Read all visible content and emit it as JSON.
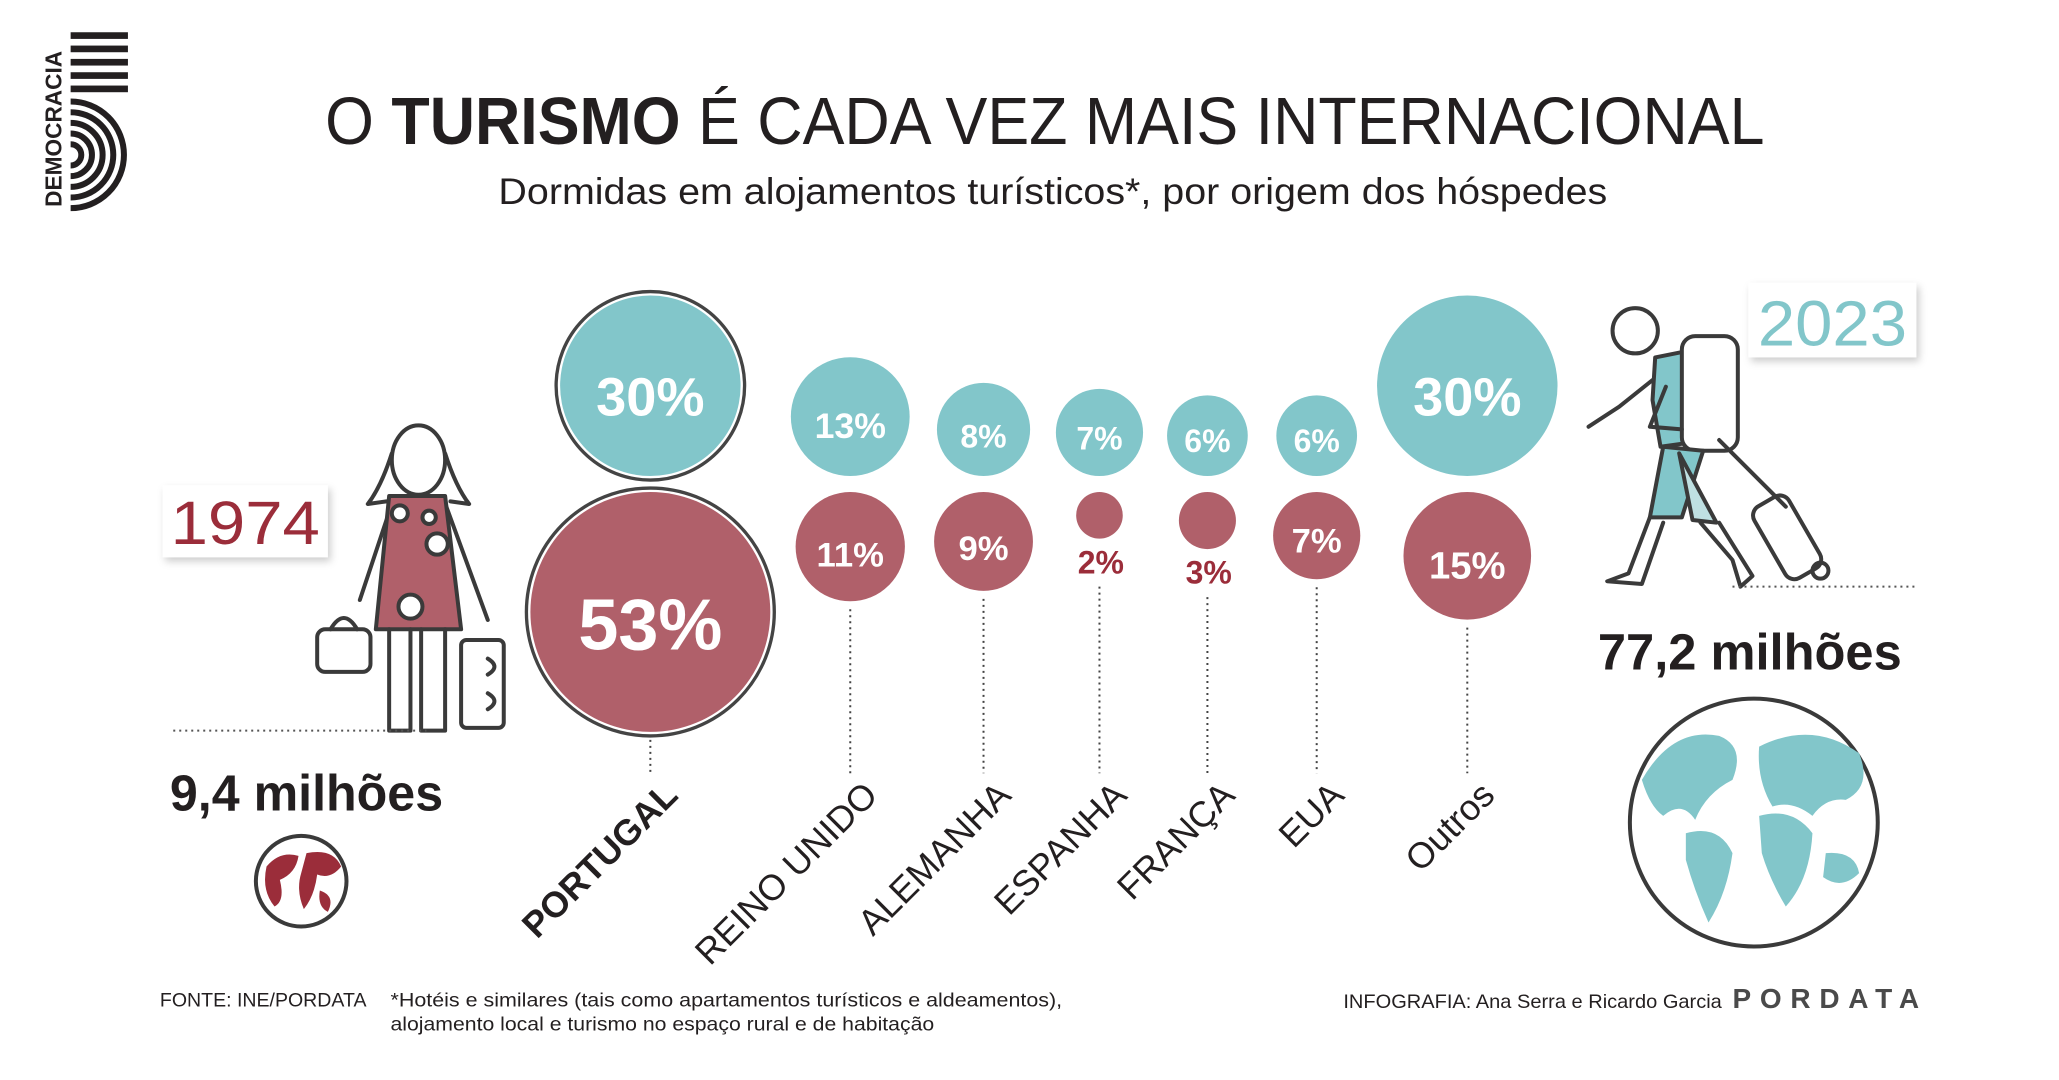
{
  "logo": {
    "text": "DEMOCRACIA",
    "number": "5"
  },
  "header": {
    "title_prefix": "O",
    "title_bold": "TURISMO",
    "title_suffix": "É CADA VEZ MAIS INTERNACIONAL",
    "subtitle": "Dormidas em alojamentos turísticos*, por origem dos hóspedes"
  },
  "left": {
    "year": "1974",
    "total": "9,4 milhões"
  },
  "right": {
    "year": "2023",
    "total": "77,2 milhões"
  },
  "colors": {
    "y1974": "#9b2d3a",
    "y1974_fill": "#b0606a",
    "y2023": "#82c6ca",
    "text": "#231f20"
  },
  "chart_data": {
    "type": "bubble",
    "categories": [
      "PORTUGAL",
      "REINO UNIDO",
      "ALEMANHA",
      "ESPANHA",
      "FRANÇA",
      "EUA",
      "Outros"
    ],
    "series": [
      {
        "name": "2023",
        "values": [
          30,
          13,
          8,
          7,
          6,
          6,
          30
        ],
        "labels": [
          "30%",
          "13%",
          "8%",
          "7%",
          "6%",
          "6%",
          "30%"
        ]
      },
      {
        "name": "1974",
        "values": [
          53,
          11,
          9,
          2,
          3,
          7,
          15
        ],
        "labels": [
          "53%",
          "11%",
          "9%",
          "2%",
          "3%",
          "7%",
          "15%"
        ]
      }
    ],
    "unit": "%"
  },
  "footer": {
    "source": "FONTE: INE/PORDATA",
    "note_line1": "*Hotéis e similares (tais como apartamentos turísticos e aldeamentos),",
    "note_line2": "alojamento local e turismo no espaço rural e de habitação",
    "credits": "INFOGRAFIA: Ana Serra e Ricardo Garcia",
    "brand": "PORDATA"
  }
}
